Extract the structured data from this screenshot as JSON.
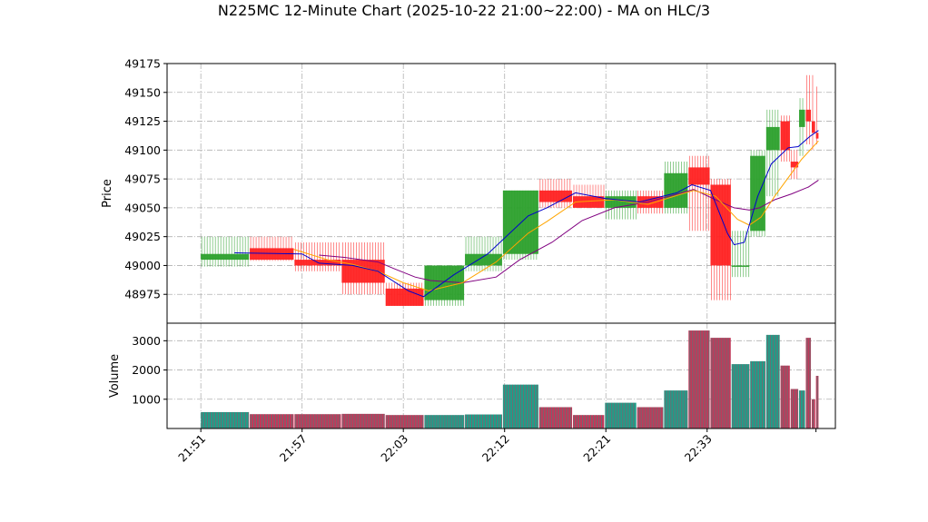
{
  "chart_data": {
    "type": "candlestick",
    "title": "N225MC 12-Minute Chart (2025-10-22 21:00~22:00) - MA on HLC/3",
    "price_panel": {
      "ylabel": "Price",
      "ylim": [
        48950,
        49175
      ],
      "yticks": [
        48975,
        49000,
        49025,
        49050,
        49075,
        49100,
        49125,
        49150,
        49175
      ],
      "grid": true
    },
    "volume_panel": {
      "ylabel": "Volume",
      "ylim": [
        0,
        3600
      ],
      "yticks": [
        1000,
        2000,
        3000
      ],
      "grid": true
    },
    "x_tick_labels": [
      "21:51",
      "21:57",
      "22:03",
      "22:12",
      "22:21",
      "22:33"
    ],
    "x_tick_positions": [
      0,
      6,
      12,
      18,
      24,
      30
    ],
    "x_range": [
      -2,
      37.6
    ],
    "colors": {
      "up": "#2ca02c",
      "down": "#ff2222",
      "ma_fast": "#0000cc",
      "ma_mid": "#ffa500",
      "ma_slow": "#800080",
      "volume_a": "#1f9e89",
      "volume_b": "#c0395a"
    },
    "candles": [
      {
        "x": 0,
        "w": 2.85,
        "o": 49005,
        "h": 49025,
        "l": 48999,
        "c": 49010,
        "v": 560
      },
      {
        "x": 2.9,
        "w": 2.6,
        "o": 49015,
        "h": 49025,
        "l": 49004,
        "c": 49005,
        "v": 490
      },
      {
        "x": 5.55,
        "w": 2.75,
        "o": 49005,
        "h": 49020,
        "l": 48995,
        "c": 49000,
        "v": 490
      },
      {
        "x": 8.35,
        "w": 2.55,
        "o": 49005,
        "h": 49020,
        "l": 48975,
        "c": 48985,
        "v": 500
      },
      {
        "x": 10.95,
        "w": 2.25,
        "o": 48980,
        "h": 48985,
        "l": 48965,
        "c": 48965,
        "v": 460
      },
      {
        "x": 13.25,
        "w": 2.35,
        "o": 48970,
        "h": 49000,
        "l": 48965,
        "c": 49000,
        "v": 460
      },
      {
        "x": 15.65,
        "w": 2.2,
        "o": 49000,
        "h": 49025,
        "l": 48995,
        "c": 49010,
        "v": 480
      },
      {
        "x": 17.9,
        "w": 2.1,
        "o": 49010,
        "h": 49065,
        "l": 49005,
        "c": 49065,
        "v": 1500
      },
      {
        "x": 20.05,
        "w": 1.95,
        "o": 49065,
        "h": 49075,
        "l": 49050,
        "c": 49055,
        "v": 730
      },
      {
        "x": 22.05,
        "w": 1.85,
        "o": 49060,
        "h": 49070,
        "l": 49050,
        "c": 49050,
        "v": 460
      },
      {
        "x": 23.95,
        "w": 1.85,
        "o": 49050,
        "h": 49065,
        "l": 49040,
        "c": 49060,
        "v": 880
      },
      {
        "x": 25.85,
        "w": 1.55,
        "o": 49060,
        "h": 49065,
        "l": 49045,
        "c": 49050,
        "v": 730
      },
      {
        "x": 27.45,
        "w": 1.4,
        "o": 49050,
        "h": 49090,
        "l": 49045,
        "c": 49080,
        "v": 1300
      },
      {
        "x": 28.9,
        "w": 1.25,
        "o": 49085,
        "h": 49095,
        "l": 49030,
        "c": 49070,
        "v": 3350
      },
      {
        "x": 30.2,
        "w": 1.2,
        "o": 49070,
        "h": 49075,
        "l": 48970,
        "c": 49000,
        "v": 3100
      },
      {
        "x": 31.45,
        "w": 1.05,
        "o": 49000,
        "h": 49030,
        "l": 48990,
        "c": 49000,
        "v": 2200
      },
      {
        "x": 32.55,
        "w": 0.9,
        "o": 49030,
        "h": 49100,
        "l": 49025,
        "c": 49095,
        "v": 2300
      },
      {
        "x": 33.5,
        "w": 0.8,
        "o": 49100,
        "h": 49135,
        "l": 49060,
        "c": 49120,
        "v": 3200
      },
      {
        "x": 34.35,
        "w": 0.55,
        "o": 49125,
        "h": 49130,
        "l": 49090,
        "c": 49100,
        "v": 2150
      },
      {
        "x": 34.95,
        "w": 0.45,
        "o": 49090,
        "h": 49100,
        "l": 49075,
        "c": 49085,
        "v": 1350
      },
      {
        "x": 35.45,
        "w": 0.35,
        "o": 49120,
        "h": 49145,
        "l": 49095,
        "c": 49135,
        "v": 1300
      },
      {
        "x": 35.85,
        "w": 0.3,
        "o": 49135,
        "h": 49165,
        "l": 49105,
        "c": 49125,
        "v": 3100
      },
      {
        "x": 36.2,
        "w": 0.2,
        "o": 49125,
        "h": 49165,
        "l": 49100,
        "c": 49115,
        "v": 1000
      },
      {
        "x": 36.45,
        "w": 0.15,
        "o": 49115,
        "h": 49155,
        "l": 49105,
        "c": 49110,
        "v": 1800
      }
    ],
    "ma_fast": [
      [
        2,
        49011
      ],
      [
        6,
        49010
      ],
      [
        7,
        49002
      ],
      [
        9,
        49000
      ],
      [
        10.5,
        48995
      ],
      [
        12.3,
        48978
      ],
      [
        13.2,
        48973
      ],
      [
        15,
        48992
      ],
      [
        17,
        49010
      ],
      [
        19.4,
        49043
      ],
      [
        20.5,
        49050
      ],
      [
        22.2,
        49063
      ],
      [
        24,
        49058
      ],
      [
        26,
        49055
      ],
      [
        28.2,
        49063
      ],
      [
        29.1,
        49070
      ],
      [
        30.2,
        49065
      ],
      [
        31.2,
        49028
      ],
      [
        31.6,
        49018
      ],
      [
        32.2,
        49020
      ],
      [
        33,
        49060
      ],
      [
        33.8,
        49088
      ],
      [
        34.8,
        49102
      ],
      [
        35.4,
        49103
      ],
      [
        36.1,
        49112
      ],
      [
        36.6,
        49117
      ]
    ],
    "ma_mid": [
      [
        5.5,
        49014
      ],
      [
        7.5,
        49005
      ],
      [
        9,
        49001
      ],
      [
        10.5,
        48995
      ],
      [
        12,
        48985
      ],
      [
        13.5,
        48978
      ],
      [
        15.5,
        48985
      ],
      [
        17.5,
        49003
      ],
      [
        19.4,
        49028
      ],
      [
        20.5,
        49038
      ],
      [
        22.2,
        49055
      ],
      [
        24.5,
        49057
      ],
      [
        26.5,
        49053
      ],
      [
        28.5,
        49062
      ],
      [
        29.2,
        49065
      ],
      [
        30.5,
        49060
      ],
      [
        31.8,
        49040
      ],
      [
        32.5,
        49035
      ],
      [
        33.2,
        49042
      ],
      [
        34,
        49060
      ],
      [
        35,
        49080
      ],
      [
        35.6,
        49092
      ],
      [
        36.1,
        49100
      ],
      [
        36.6,
        49108
      ]
    ],
    "ma_slow": [
      [
        7,
        49009
      ],
      [
        8.5,
        49007
      ],
      [
        10.5,
        49003
      ],
      [
        11.5,
        48997
      ],
      [
        12.7,
        48990
      ],
      [
        13.6,
        48987
      ],
      [
        15.5,
        48985
      ],
      [
        17.5,
        48990
      ],
      [
        18.9,
        49005
      ],
      [
        20.8,
        49020
      ],
      [
        22.6,
        49039
      ],
      [
        24.5,
        49050
      ],
      [
        26.5,
        49055
      ],
      [
        28.5,
        49063
      ],
      [
        29.2,
        49066
      ],
      [
        30.5,
        49057
      ],
      [
        31.6,
        49050
      ],
      [
        32.5,
        49048
      ],
      [
        33.1,
        49050
      ],
      [
        34,
        49057
      ],
      [
        35,
        49062
      ],
      [
        36,
        49068
      ],
      [
        36.6,
        49074
      ]
    ]
  }
}
